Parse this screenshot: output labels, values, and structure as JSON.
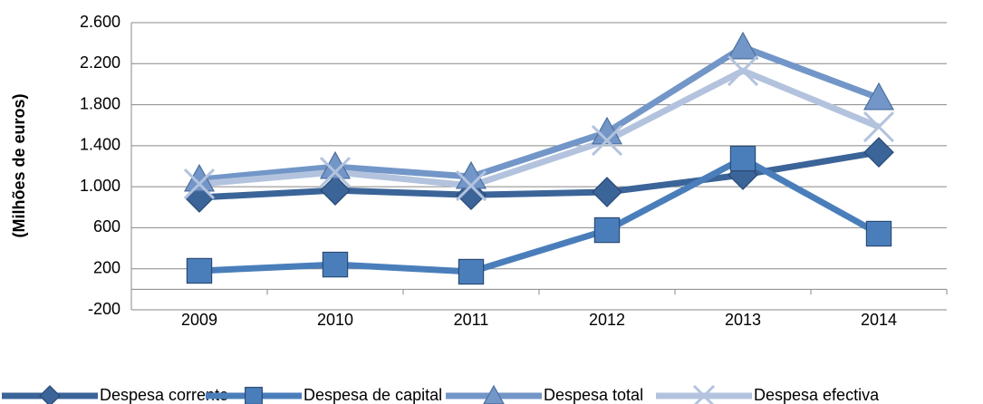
{
  "chart_data": {
    "type": "line",
    "y_label": "(Milhões de euros)",
    "categories": [
      "2009",
      "2010",
      "2011",
      "2012",
      "2013",
      "2014"
    ],
    "series": [
      {
        "name": "Despesa corrente",
        "color": "#3b6498",
        "marker": "diamond",
        "values": [
          895,
          965,
          920,
          948,
          1116,
          1336
        ]
      },
      {
        "name": "Despesa de capital",
        "color": "#4a7ebb",
        "marker": "square",
        "values": [
          180,
          241,
          171,
          577,
          1275,
          542
        ]
      },
      {
        "name": "Despesa total",
        "color": "#7396c8",
        "marker": "triangle",
        "values": [
          1071,
          1195,
          1098,
          1531,
          2361,
          1866
        ]
      },
      {
        "name": "Despesa efectiva",
        "color": "#b3c3de",
        "marker": "x",
        "values": [
          1027,
          1142,
          1010,
          1451,
          2131,
          1584
        ]
      }
    ],
    "ylim": [
      -200,
      2600
    ],
    "yticks": [
      -200,
      200,
      600,
      {
        "value": 1000,
        "label": "1.000"
      },
      {
        "value": 1400,
        "label": "1.400"
      },
      {
        "value": 1800,
        "label": "1.800"
      },
      {
        "value": 2200,
        "label": "2.200"
      },
      {
        "value": 2600,
        "label": "2.600"
      }
    ],
    "grid": true,
    "legend": "bottom"
  }
}
